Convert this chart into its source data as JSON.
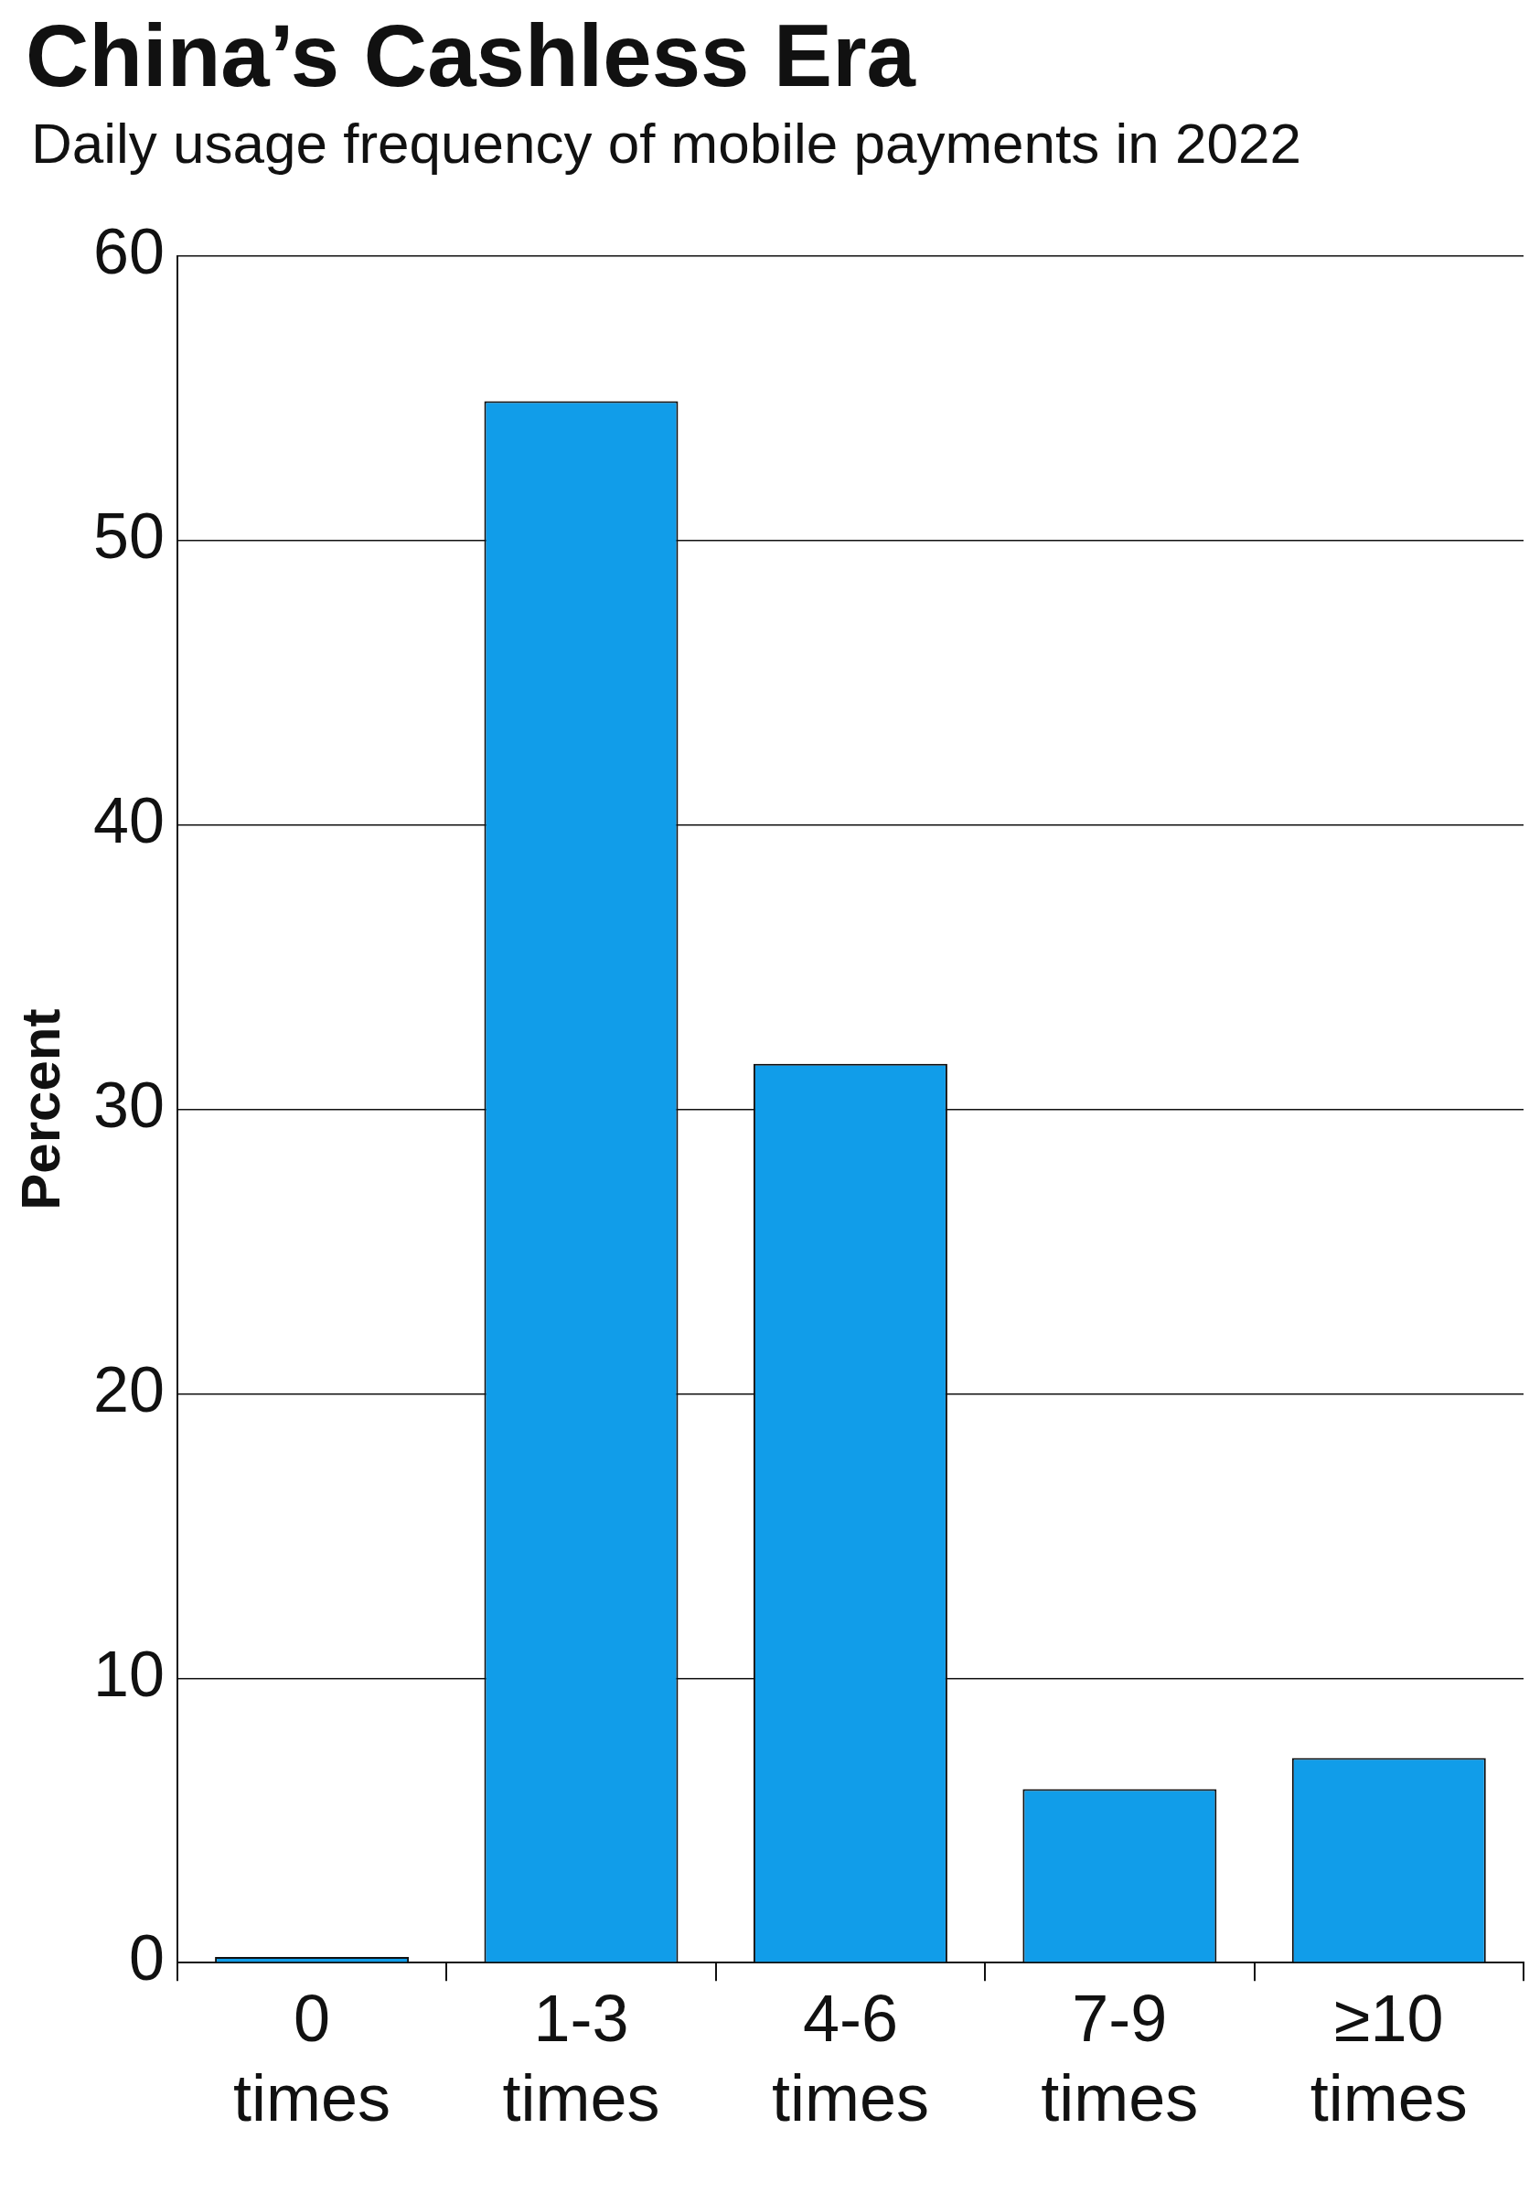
{
  "chart_data": {
    "type": "bar",
    "title": "China’s Cashless Era",
    "subtitle": "Daily usage frequency of mobile payments in 2022",
    "ylabel": "Percent",
    "categories": [
      "0 times",
      "1-3 times",
      "4-6 times",
      "7-9 times",
      "≥10 times"
    ],
    "values": [
      0.2,
      54.9,
      31.6,
      6.1,
      7.2
    ],
    "color": "#119de9",
    "ylim": [
      0,
      60
    ],
    "yticks": [
      0,
      10,
      20,
      30,
      40,
      50,
      60
    ],
    "grid": "y"
  }
}
